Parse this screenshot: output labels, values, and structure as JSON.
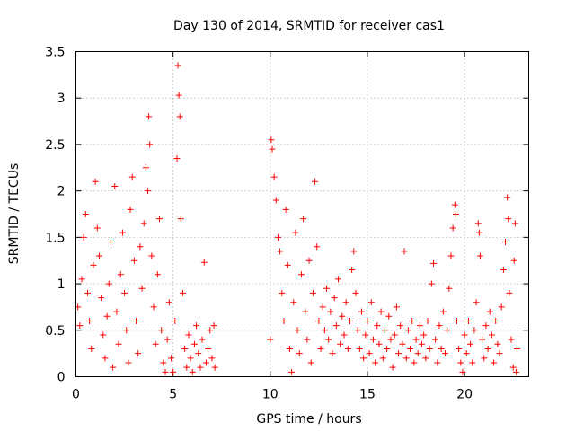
{
  "chart_data": {
    "type": "scatter",
    "title": "Day 130 of 2014, SRMTID for receiver cas1",
    "xlabel": "GPS time / hours",
    "ylabel": "SRMTID / TECUs",
    "xlim": [
      0,
      23.3
    ],
    "ylim": [
      0,
      3.5
    ],
    "x_ticks": [
      0,
      5,
      10,
      15,
      20
    ],
    "x_tick_labels": [
      "0",
      "5",
      "10",
      "15",
      "20"
    ],
    "y_ticks": [
      0,
      0.5,
      1,
      1.5,
      2,
      2.5,
      3,
      3.5
    ],
    "y_tick_labels": [
      "0",
      "0.5",
      "1",
      "1.5",
      "2",
      "2.5",
      "3",
      "3.5"
    ],
    "grid": true,
    "marker": "+",
    "series": [
      {
        "name": "SRMTID",
        "color": "#ff0000",
        "points": [
          [
            0.1,
            0.75
          ],
          [
            0.2,
            0.55
          ],
          [
            0.3,
            1.05
          ],
          [
            0.4,
            1.5
          ],
          [
            0.5,
            1.75
          ],
          [
            0.6,
            0.9
          ],
          [
            0.7,
            0.6
          ],
          [
            0.8,
            0.3
          ],
          [
            0.9,
            1.2
          ],
          [
            1.0,
            2.1
          ],
          [
            1.1,
            1.6
          ],
          [
            1.2,
            1.3
          ],
          [
            1.3,
            0.85
          ],
          [
            1.4,
            0.45
          ],
          [
            1.5,
            0.2
          ],
          [
            1.6,
            0.65
          ],
          [
            1.7,
            1.0
          ],
          [
            1.8,
            1.45
          ],
          [
            1.9,
            0.1
          ],
          [
            2.0,
            2.05
          ],
          [
            2.1,
            0.7
          ],
          [
            2.2,
            0.35
          ],
          [
            2.3,
            1.1
          ],
          [
            2.4,
            1.55
          ],
          [
            2.5,
            0.9
          ],
          [
            2.6,
            0.5
          ],
          [
            2.7,
            0.15
          ],
          [
            2.8,
            1.8
          ],
          [
            2.9,
            2.15
          ],
          [
            3.0,
            1.25
          ],
          [
            3.1,
            0.6
          ],
          [
            3.2,
            0.25
          ],
          [
            3.3,
            1.4
          ],
          [
            3.4,
            0.95
          ],
          [
            3.5,
            1.65
          ],
          [
            3.6,
            2.25
          ],
          [
            3.7,
            2.0
          ],
          [
            3.75,
            2.8
          ],
          [
            3.8,
            2.5
          ],
          [
            3.9,
            1.3
          ],
          [
            4.0,
            0.75
          ],
          [
            4.1,
            0.35
          ],
          [
            4.2,
            1.1
          ],
          [
            4.3,
            1.7
          ],
          [
            4.4,
            0.5
          ],
          [
            4.5,
            0.15
          ],
          [
            4.6,
            0.05
          ],
          [
            4.7,
            0.4
          ],
          [
            4.8,
            0.8
          ],
          [
            4.9,
            0.2
          ],
          [
            5.0,
            0.05
          ],
          [
            5.1,
            0.6
          ],
          [
            5.2,
            2.35
          ],
          [
            5.25,
            3.35
          ],
          [
            5.3,
            3.03
          ],
          [
            5.35,
            2.8
          ],
          [
            5.4,
            1.7
          ],
          [
            5.5,
            0.9
          ],
          [
            5.6,
            0.3
          ],
          [
            5.7,
            0.1
          ],
          [
            5.8,
            0.45
          ],
          [
            5.9,
            0.2
          ],
          [
            6.0,
            0.05
          ],
          [
            6.1,
            0.35
          ],
          [
            6.2,
            0.55
          ],
          [
            6.3,
            0.25
          ],
          [
            6.4,
            0.1
          ],
          [
            6.5,
            0.4
          ],
          [
            6.6,
            1.23
          ],
          [
            6.7,
            0.15
          ],
          [
            6.8,
            0.3
          ],
          [
            6.9,
            0.5
          ],
          [
            7.0,
            0.2
          ],
          [
            7.1,
            0.55
          ],
          [
            7.15,
            0.1
          ],
          [
            10.0,
            0.4
          ],
          [
            10.05,
            2.55
          ],
          [
            10.1,
            2.45
          ],
          [
            10.2,
            2.15
          ],
          [
            10.3,
            1.9
          ],
          [
            10.4,
            1.5
          ],
          [
            10.5,
            1.35
          ],
          [
            10.6,
            0.9
          ],
          [
            10.7,
            0.6
          ],
          [
            10.8,
            1.8
          ],
          [
            10.9,
            1.2
          ],
          [
            11.0,
            0.3
          ],
          [
            11.1,
            0.05
          ],
          [
            11.2,
            0.8
          ],
          [
            11.3,
            1.55
          ],
          [
            11.4,
            0.5
          ],
          [
            11.5,
            0.25
          ],
          [
            11.6,
            1.1
          ],
          [
            11.7,
            1.7
          ],
          [
            11.8,
            0.7
          ],
          [
            11.9,
            0.4
          ],
          [
            12.0,
            1.25
          ],
          [
            12.1,
            0.15
          ],
          [
            12.2,
            0.9
          ],
          [
            12.3,
            2.1
          ],
          [
            12.4,
            1.4
          ],
          [
            12.5,
            0.6
          ],
          [
            12.6,
            0.3
          ],
          [
            12.7,
            0.75
          ],
          [
            12.8,
            0.5
          ],
          [
            12.9,
            0.95
          ],
          [
            13.0,
            0.4
          ],
          [
            13.1,
            0.7
          ],
          [
            13.2,
            0.25
          ],
          [
            13.3,
            0.85
          ],
          [
            13.4,
            0.55
          ],
          [
            13.5,
            1.05
          ],
          [
            13.6,
            0.35
          ],
          [
            13.7,
            0.65
          ],
          [
            13.8,
            0.45
          ],
          [
            13.9,
            0.8
          ],
          [
            14.0,
            0.3
          ],
          [
            14.1,
            0.6
          ],
          [
            14.2,
            1.15
          ],
          [
            14.3,
            1.35
          ],
          [
            14.4,
            0.9
          ],
          [
            14.5,
            0.5
          ],
          [
            14.6,
            0.3
          ],
          [
            14.7,
            0.7
          ],
          [
            14.8,
            0.2
          ],
          [
            14.9,
            0.45
          ],
          [
            15.0,
            0.6
          ],
          [
            15.1,
            0.25
          ],
          [
            15.2,
            0.8
          ],
          [
            15.3,
            0.4
          ],
          [
            15.4,
            0.15
          ],
          [
            15.5,
            0.55
          ],
          [
            15.6,
            0.35
          ],
          [
            15.7,
            0.7
          ],
          [
            15.8,
            0.2
          ],
          [
            15.9,
            0.5
          ],
          [
            16.0,
            0.3
          ],
          [
            16.1,
            0.65
          ],
          [
            16.2,
            0.4
          ],
          [
            16.3,
            0.1
          ],
          [
            16.4,
            0.45
          ],
          [
            16.5,
            0.75
          ],
          [
            16.6,
            0.25
          ],
          [
            16.7,
            0.55
          ],
          [
            16.8,
            0.35
          ],
          [
            16.9,
            1.35
          ],
          [
            17.0,
            0.2
          ],
          [
            17.1,
            0.5
          ],
          [
            17.2,
            0.3
          ],
          [
            17.3,
            0.6
          ],
          [
            17.4,
            0.15
          ],
          [
            17.5,
            0.4
          ],
          [
            17.6,
            0.25
          ],
          [
            17.7,
            0.55
          ],
          [
            17.8,
            0.35
          ],
          [
            17.9,
            0.45
          ],
          [
            18.0,
            0.2
          ],
          [
            18.1,
            0.6
          ],
          [
            18.2,
            0.3
          ],
          [
            18.3,
            1.0
          ],
          [
            18.4,
            1.22
          ],
          [
            18.5,
            0.4
          ],
          [
            18.6,
            0.15
          ],
          [
            18.7,
            0.55
          ],
          [
            18.8,
            0.3
          ],
          [
            18.9,
            0.7
          ],
          [
            19.0,
            0.25
          ],
          [
            19.1,
            0.5
          ],
          [
            19.2,
            0.95
          ],
          [
            19.3,
            1.3
          ],
          [
            19.4,
            1.6
          ],
          [
            19.5,
            1.85
          ],
          [
            19.55,
            1.75
          ],
          [
            19.6,
            0.6
          ],
          [
            19.7,
            0.3
          ],
          [
            19.8,
            0.15
          ],
          [
            19.9,
            0.05
          ],
          [
            20.0,
            0.45
          ],
          [
            20.1,
            0.25
          ],
          [
            20.2,
            0.6
          ],
          [
            20.3,
            0.35
          ],
          [
            20.4,
            0.15
          ],
          [
            20.5,
            0.5
          ],
          [
            20.6,
            0.8
          ],
          [
            20.7,
            1.65
          ],
          [
            20.75,
            1.55
          ],
          [
            20.8,
            1.3
          ],
          [
            20.9,
            0.4
          ],
          [
            21.0,
            0.2
          ],
          [
            21.1,
            0.55
          ],
          [
            21.2,
            0.3
          ],
          [
            21.3,
            0.7
          ],
          [
            21.4,
            0.45
          ],
          [
            21.5,
            0.15
          ],
          [
            21.6,
            0.6
          ],
          [
            21.7,
            0.35
          ],
          [
            21.8,
            0.25
          ],
          [
            21.9,
            0.75
          ],
          [
            22.0,
            1.15
          ],
          [
            22.1,
            1.45
          ],
          [
            22.2,
            1.93
          ],
          [
            22.25,
            1.7
          ],
          [
            22.3,
            0.9
          ],
          [
            22.4,
            0.4
          ],
          [
            22.5,
            0.1
          ],
          [
            22.55,
            1.25
          ],
          [
            22.6,
            1.65
          ],
          [
            22.65,
            0.05
          ],
          [
            22.7,
            0.3
          ]
        ]
      }
    ]
  }
}
